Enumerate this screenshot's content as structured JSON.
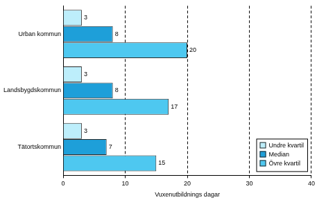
{
  "chart_data": {
    "type": "bar",
    "orientation": "horizontal",
    "categories": [
      "Urban kommun",
      "Landsbygdskommun",
      "Tätortskommun"
    ],
    "series": [
      {
        "name": "Undre kvartil",
        "color": "#bdeefb",
        "values": [
          3,
          3,
          3
        ]
      },
      {
        "name": "Median",
        "color": "#1e9fd9",
        "values": [
          8,
          8,
          7
        ]
      },
      {
        "name": "Övre kvartil",
        "color": "#4ec8f0",
        "values": [
          20,
          17,
          15
        ]
      }
    ],
    "x_label": "Vuxenutbildnings dagar",
    "xlim": [
      0,
      40
    ],
    "xticks": [
      0,
      10,
      20,
      30,
      40
    ],
    "grid": true,
    "legend": "lower right",
    "data_labels": true
  }
}
